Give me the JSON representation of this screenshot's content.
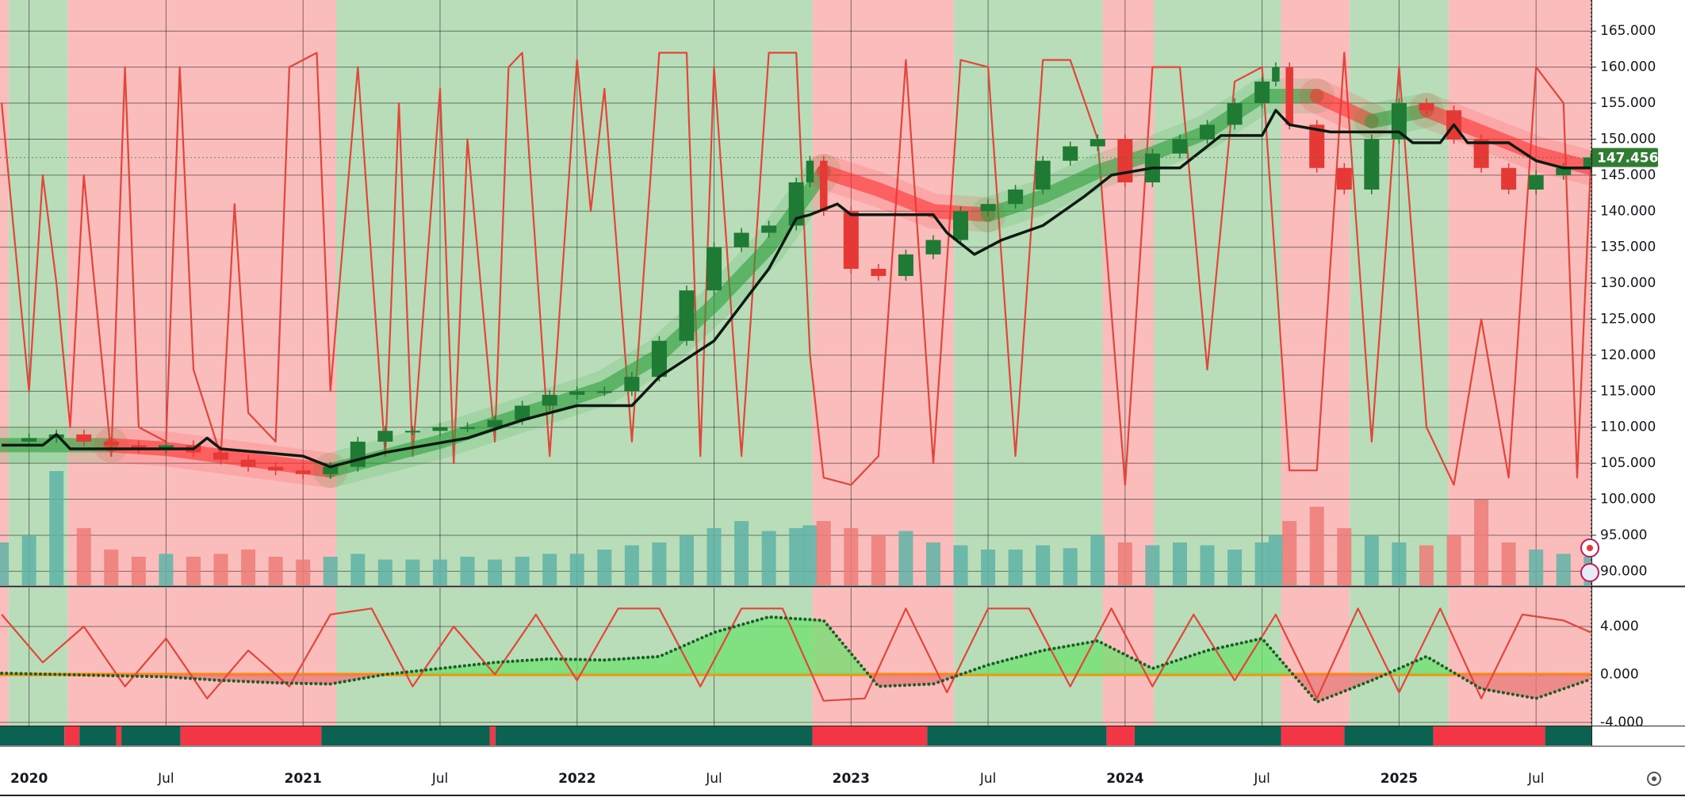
{
  "chart_data": [
    {
      "type": "candlestick",
      "xlim": [
        2019.894,
        2025.702
      ],
      "ylim": [
        88.06,
        169.32
      ],
      "yticks": [
        {
          "value": 165,
          "label": "165.000"
        },
        {
          "value": 160,
          "label": "160.000"
        },
        {
          "value": 155,
          "label": "155.000"
        },
        {
          "value": 150,
          "label": "150.000"
        },
        {
          "value": 145,
          "label": "145.000"
        },
        {
          "value": 140,
          "label": "140.000"
        },
        {
          "value": 135,
          "label": "135.000"
        },
        {
          "value": 130,
          "label": "130.000"
        },
        {
          "value": 125,
          "label": "125.000"
        },
        {
          "value": 120,
          "label": "120.000"
        },
        {
          "value": 115,
          "label": "115.000"
        },
        {
          "value": 110,
          "label": "110.000"
        },
        {
          "value": 105,
          "label": "105.000"
        },
        {
          "value": 100,
          "label": "100.000"
        },
        {
          "value": 95,
          "label": "95.000"
        },
        {
          "value": 90,
          "label": "90.000"
        }
      ],
      "xticks": [
        2020,
        {
          "value": 2020.5,
          "label": "Jul"
        },
        2021,
        {
          "value": 2021.5,
          "label": "Jul"
        },
        2022,
        {
          "value": 2022.5,
          "label": "Jul"
        },
        2023,
        {
          "value": 2023.5,
          "label": "Jul"
        },
        2024,
        {
          "value": 2024.5,
          "label": "Jul"
        },
        2025,
        {
          "value": 2025.5,
          "label": "Jul"
        }
      ],
      "grid": true,
      "grid_color": "#1e1e1e",
      "regions": [
        {
          "from": 2019.894,
          "to": 2019.925,
          "color": "#fbbcbc"
        },
        {
          "from": 2019.925,
          "to": 2020.141,
          "color": "#b8ddb8"
        },
        {
          "from": 2020.141,
          "to": 2021.121,
          "color": "#fbbcbc"
        },
        {
          "from": 2021.121,
          "to": 2022.859,
          "color": "#b8ddb8"
        },
        {
          "from": 2022.859,
          "to": 2023.376,
          "color": "#fbbcbc"
        },
        {
          "from": 2023.376,
          "to": 2023.918,
          "color": "#b8ddb8"
        },
        {
          "from": 2023.918,
          "to": 2024.106,
          "color": "#fbbcbc"
        },
        {
          "from": 2024.106,
          "to": 2024.569,
          "color": "#b8ddb8"
        },
        {
          "from": 2024.569,
          "to": 2024.82,
          "color": "#fbbcbc"
        },
        {
          "from": 2024.82,
          "to": 2025.18,
          "color": "#b8ddb8"
        },
        {
          "from": 2025.18,
          "to": 2025.702,
          "color": "#fbbcbc"
        }
      ],
      "price": {
        "x": [
          2019.9,
          2020.0,
          2020.1,
          2020.2,
          2020.3,
          2020.4,
          2020.5,
          2020.6,
          2020.7,
          2020.8,
          2020.9,
          2021.0,
          2021.1,
          2021.2,
          2021.3,
          2021.4,
          2021.5,
          2021.6,
          2021.7,
          2021.8,
          2021.9,
          2022.0,
          2022.1,
          2022.2,
          2022.3,
          2022.4,
          2022.5,
          2022.6,
          2022.7,
          2022.8,
          2022.85,
          2022.9,
          2023.0,
          2023.1,
          2023.2,
          2023.3,
          2023.4,
          2023.5,
          2023.6,
          2023.7,
          2023.8,
          2023.9,
          2024.0,
          2024.1,
          2024.2,
          2024.3,
          2024.4,
          2024.5,
          2024.55,
          2024.6,
          2024.7,
          2024.8,
          2024.9,
          2025.0,
          2025.1,
          2025.2,
          2025.3,
          2025.4,
          2025.5,
          2025.6,
          2025.7
        ],
        "values": [
          108,
          108.5,
          109,
          108,
          107.5,
          107,
          107.5,
          106.5,
          105.5,
          104.5,
          104,
          103.5,
          104.5,
          108,
          109.5,
          109.5,
          110,
          110,
          111,
          113,
          114.5,
          115,
          115,
          117,
          122,
          129,
          135,
          137,
          138,
          144,
          147,
          140,
          132,
          131,
          134,
          136,
          140,
          141,
          143,
          147,
          149,
          150,
          144,
          148,
          150,
          152,
          155,
          158,
          160,
          152,
          146,
          143,
          150,
          155,
          154,
          150,
          146,
          143,
          145,
          146,
          147.456
        ],
        "up_color": "#1f7a34",
        "down_color": "#e53935"
      },
      "volume": {
        "values": [
          30,
          35,
          80,
          40,
          25,
          20,
          22,
          20,
          22,
          25,
          20,
          18,
          20,
          22,
          18,
          18,
          18,
          20,
          18,
          20,
          22,
          22,
          25,
          28,
          30,
          35,
          40,
          45,
          38,
          40,
          42,
          45,
          40,
          35,
          38,
          30,
          28,
          25,
          25,
          28,
          26,
          35,
          30,
          28,
          30,
          28,
          25,
          30,
          35,
          45,
          55,
          40,
          35,
          30,
          28,
          35,
          60,
          30,
          25,
          22,
          20
        ],
        "ylim": [
          0,
          100
        ],
        "up_color": "#5fb3a6",
        "down_color": "#ec7d77"
      },
      "ma": {
        "x": [
          2019.9,
          2020.1,
          2020.3,
          2020.5,
          2020.7,
          2020.9,
          2021.1,
          2021.3,
          2021.5,
          2021.7,
          2021.9,
          2022.1,
          2022.3,
          2022.5,
          2022.7,
          2022.9,
          2023.1,
          2023.3,
          2023.5,
          2023.7,
          2023.9,
          2024.1,
          2024.3,
          2024.5,
          2024.7,
          2024.9,
          2025.1,
          2025.3,
          2025.5,
          2025.7
        ],
        "values": [
          107.5,
          107.5,
          107.5,
          107,
          106,
          105,
          104,
          106,
          108,
          110.5,
          113,
          115.5,
          120,
          127,
          135,
          145.5,
          143,
          140,
          139.5,
          142,
          145.5,
          148,
          151,
          156,
          156,
          152.5,
          154,
          151,
          148,
          146
        ],
        "up_color": "#2e9e3e",
        "down_color": "#ff3030"
      },
      "stop": {
        "x": [
          2019.9,
          2020.05,
          2020.1,
          2020.15,
          2020.3,
          2020.6,
          2020.65,
          2020.7,
          2021.0,
          2021.1,
          2021.3,
          2021.6,
          2021.8,
          2022.0,
          2022.15,
          2022.2,
          2022.3,
          2022.5,
          2022.6,
          2022.7,
          2022.8,
          2022.85,
          2022.95,
          2023.0,
          2023.3,
          2023.35,
          2023.45,
          2023.55,
          2023.7,
          2023.85,
          2023.95,
          2024.1,
          2024.2,
          2024.35,
          2024.5,
          2024.55,
          2024.6,
          2024.75,
          2025.0,
          2025.05,
          2025.15,
          2025.2,
          2025.25,
          2025.4,
          2025.5,
          2025.6,
          2025.7
        ],
        "values": [
          107.5,
          107.5,
          109,
          107,
          107,
          107,
          108.5,
          107,
          106,
          104.5,
          106.5,
          108.5,
          111,
          113,
          113,
          113,
          117,
          122,
          127,
          132,
          139,
          139.5,
          141,
          139.5,
          139.5,
          137,
          134,
          136,
          138,
          142,
          145,
          146,
          146,
          150.5,
          150.5,
          154,
          152,
          151,
          151,
          149.5,
          149.5,
          152,
          149.5,
          149.5,
          147,
          146,
          146
        ],
        "color": "#0d1a12"
      },
      "oscillator": {
        "x": [
          2019.9,
          2020.0,
          2020.05,
          2020.1,
          2020.15,
          2020.2,
          2020.3,
          2020.35,
          2020.4,
          2020.5,
          2020.55,
          2020.6,
          2020.7,
          2020.75,
          2020.8,
          2020.9,
          2020.95,
          2021.0,
          2021.05,
          2021.1,
          2021.2,
          2021.3,
          2021.35,
          2021.4,
          2021.5,
          2021.55,
          2021.6,
          2021.7,
          2021.75,
          2021.8,
          2021.9,
          2022.0,
          2022.05,
          2022.1,
          2022.2,
          2022.3,
          2022.4,
          2022.45,
          2022.5,
          2022.6,
          2022.7,
          2022.8,
          2022.85,
          2022.9,
          2023.0,
          2023.1,
          2023.2,
          2023.3,
          2023.4,
          2023.5,
          2023.6,
          2023.7,
          2023.8,
          2023.9,
          2024.0,
          2024.1,
          2024.2,
          2024.3,
          2024.4,
          2024.5,
          2024.6,
          2024.7,
          2024.8,
          2024.9,
          2025.0,
          2025.1,
          2025.2,
          2025.3,
          2025.4,
          2025.5,
          2025.6,
          2025.65,
          2025.7
        ],
        "values": [
          155,
          115,
          145,
          130,
          110,
          145,
          106,
          160,
          110,
          108,
          160,
          118,
          106,
          141,
          112,
          108,
          160,
          161,
          162,
          115,
          160,
          106,
          155,
          106,
          157,
          105,
          150,
          108,
          160,
          162,
          106,
          161,
          140,
          157,
          108,
          162,
          162,
          106,
          160,
          106,
          162,
          162,
          120,
          103,
          102,
          106,
          161,
          105,
          161,
          160,
          106,
          161,
          161,
          150,
          102,
          160,
          160,
          118,
          158,
          160,
          104,
          104,
          162,
          108,
          160,
          110,
          102,
          125,
          103,
          160,
          155,
          103,
          147
        ],
        "color": "#e2463a"
      },
      "last_price": 147.456,
      "last_price_color": "#2e7d32"
    },
    {
      "type": "line",
      "ylim": [
        -4.27,
        7.24
      ],
      "yticks": [
        {
          "value": 4,
          "label": "4.000"
        },
        {
          "value": 0,
          "label": "0.000"
        },
        {
          "value": -4,
          "label": "-4.000"
        }
      ],
      "zero_color": "#ff8a00",
      "fill_up": "#6fe06f",
      "fill_down": "#e87a7a",
      "trend": {
        "x": [
          2019.9,
          2020.1,
          2020.3,
          2020.5,
          2020.7,
          2020.9,
          2021.1,
          2021.3,
          2021.5,
          2021.7,
          2021.9,
          2022.1,
          2022.3,
          2022.5,
          2022.7,
          2022.9,
          2023.1,
          2023.3,
          2023.5,
          2023.7,
          2023.9,
          2024.1,
          2024.3,
          2024.5,
          2024.7,
          2024.9,
          2025.1,
          2025.3,
          2025.5,
          2025.7
        ],
        "values": [
          0.1,
          0,
          -0.1,
          -0.2,
          -0.5,
          -0.7,
          -0.8,
          0,
          0.5,
          1,
          1.3,
          1.2,
          1.5,
          3.5,
          4.8,
          4.5,
          -1,
          -0.8,
          0.8,
          2,
          2.8,
          0.5,
          2,
          3,
          -2.3,
          -0.5,
          1.5,
          -1.2,
          -2,
          -0.4
        ],
        "color": "#1c5e28"
      },
      "oscillator": {
        "x": [
          2019.9,
          2020.05,
          2020.2,
          2020.35,
          2020.5,
          2020.65,
          2020.8,
          2020.95,
          2021.1,
          2021.25,
          2021.4,
          2021.55,
          2021.7,
          2021.85,
          2022.0,
          2022.15,
          2022.3,
          2022.45,
          2022.6,
          2022.75,
          2022.9,
          2023.05,
          2023.2,
          2023.35,
          2023.5,
          2023.65,
          2023.8,
          2023.95,
          2024.1,
          2024.25,
          2024.4,
          2024.55,
          2024.7,
          2024.85,
          2025.0,
          2025.15,
          2025.3,
          2025.45,
          2025.6,
          2025.7
        ],
        "values": [
          5,
          1,
          4,
          -1,
          3,
          -2,
          2,
          -1,
          5,
          5.5,
          -1,
          4,
          0,
          5,
          -0.5,
          5.5,
          5.5,
          -1,
          5.5,
          5.5,
          -2.2,
          -2,
          5.5,
          -1.5,
          5.5,
          5.5,
          -1,
          5.5,
          -1,
          5,
          -0.5,
          5,
          -2,
          5.5,
          -1.5,
          5.5,
          -2,
          5,
          4.5,
          3.5
        ],
        "color": "#e2463a"
      },
      "strip": [
        {
          "from": 2019.894,
          "to": 2020.129,
          "color": "#0b6251"
        },
        {
          "from": 2020.129,
          "to": 2020.184,
          "color": "#f23645"
        },
        {
          "from": 2020.184,
          "to": 2020.318,
          "color": "#0b6251"
        },
        {
          "from": 2020.318,
          "to": 2020.337,
          "color": "#f23645"
        },
        {
          "from": 2020.337,
          "to": 2020.553,
          "color": "#0b6251"
        },
        {
          "from": 2020.553,
          "to": 2021.067,
          "color": "#f23645"
        },
        {
          "from": 2021.067,
          "to": 2021.682,
          "color": "#0b6251"
        },
        {
          "from": 2021.682,
          "to": 2021.702,
          "color": "#f23645"
        },
        {
          "from": 2021.702,
          "to": 2022.859,
          "color": "#0b6251"
        },
        {
          "from": 2022.859,
          "to": 2023.278,
          "color": "#f23645"
        },
        {
          "from": 2023.278,
          "to": 2023.933,
          "color": "#0b6251"
        },
        {
          "from": 2023.933,
          "to": 2024.035,
          "color": "#f23645"
        },
        {
          "from": 2024.035,
          "to": 2024.569,
          "color": "#0b6251"
        },
        {
          "from": 2024.569,
          "to": 2024.8,
          "color": "#f23645"
        },
        {
          "from": 2024.8,
          "to": 2025.125,
          "color": "#0b6251"
        },
        {
          "from": 2025.125,
          "to": 2025.533,
          "color": "#f23645"
        },
        {
          "from": 2025.533,
          "to": 2025.702,
          "color": "#0b6251"
        }
      ]
    }
  ]
}
